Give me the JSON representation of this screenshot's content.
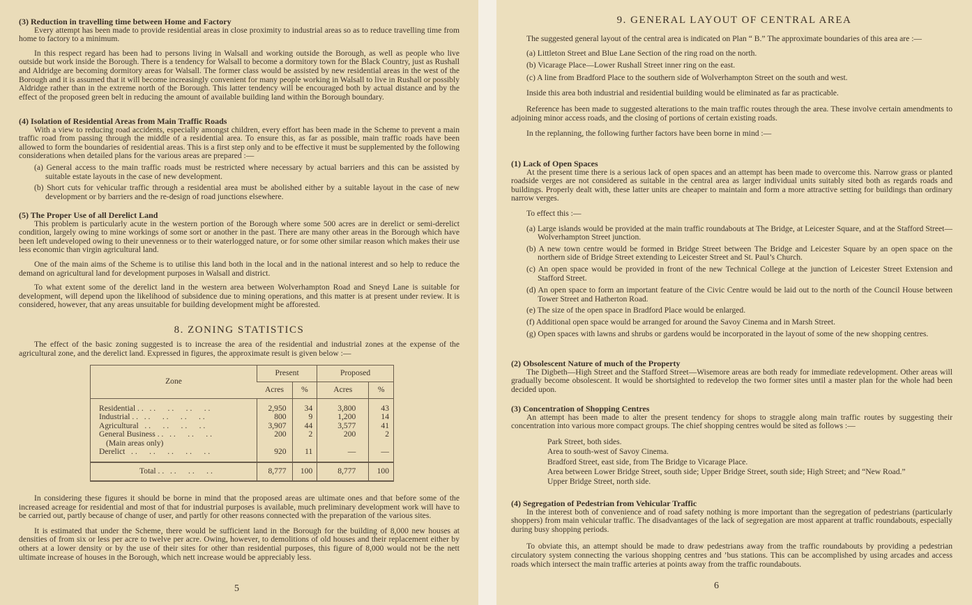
{
  "left_page": {
    "page_number": "5",
    "sec3": {
      "heading": "(3) Reduction in travelling time between Home and Factory",
      "paras": [
        "Every attempt has been made to provide residential areas in close proximity to industrial areas so as to reduce travelling time from home to factory to a minimum.",
        "In this respect regard has been had to persons living in Walsall and working outside the Borough, as well as people who live outside but work inside the Borough. There is a tendency for Walsall to become a dormitory town for the Black Country, just as Rushall and Aldridge are becoming dormitory areas for Walsall. The former class would be assisted by new residential areas in the west of the Borough and it is assumed that it will become increasingly convenient for many people working in Walsall to live in Rushall or possibly Aldridge rather than in the extreme north of the Borough. This latter tendency will be encouraged both by actual distance and by the effect of the proposed green belt in reducing the amount of available building land within the Borough boundary."
      ]
    },
    "sec4": {
      "heading": "(4) Isolation of Residential Areas from Main Traffic Roads",
      "para": "With a view to reducing road accidents, especially amongst children, every effort has been made in the Scheme to prevent a main traffic road from passing through the middle of a residential area. To ensure this, as far as possible, main traffic roads have been allowed to form the boundaries of residential areas. This is a first step only and to be effective it must be supplemented by the following considerations when detailed plans for the various areas are prepared :—",
      "items": [
        "(a) General access to the main traffic roads must be restricted where necessary by actual barriers and this can be assisted by suitable estate layouts in the case of new development.",
        "(b) Short cuts for vehicular traffic through a residential area must be abolished either by a suitable layout in the case of new development or by barriers and the re-design of road junctions elsewhere."
      ]
    },
    "sec5": {
      "heading": "(5) The Proper Use of all Derelict Land",
      "paras": [
        "This problem is particularly acute in the western portion of the Borough where some 500 acres are in derelict or semi-derelict condition, largely owing to mine workings of some sort or another in the past. There are many other areas in the Borough which have been left undeveloped owing to their unevenness or to their waterlogged nature, or for some other similar reason which makes their use less economic than virgin agricultural land.",
        "One of the main aims of the Scheme is to utilise this land both in the local and in the national interest and so help to reduce the demand on agricultural land for development purposes in Walsall and district.",
        "To what extent some of the derelict land in the western area between Wolverhampton Road and Sneyd Lane is suitable for development, will depend upon the likelihood of subsidence due to mining operations, and this matter is at present under review. It is considered, however, that any areas unsuitable for building development might be afforested."
      ]
    },
    "sec8": {
      "title": "8. ZONING STATISTICS",
      "intro": "The effect of the basic zoning suggested is to increase the area of the residential and industrial zones at the expense of the agricultural zone, and the derelict land. Expressed in figures, the approximate result is given below :—",
      "table": {
        "col_zone": "Zone",
        "col_present": "Present",
        "col_proposed": "Proposed",
        "col_acres": "Acres",
        "col_pct": "%",
        "rows": [
          {
            "zone": "Residential . .",
            "dots": ". .      . .      . .      . .",
            "present_acres": "2,950",
            "present_pct": "34",
            "proposed_acres": "3,800",
            "proposed_pct": "43"
          },
          {
            "zone": "Industrial . .",
            "dots": ". .      . .      . .      . .",
            "present_acres": "800",
            "present_pct": "9",
            "proposed_acres": "1,200",
            "proposed_pct": "14"
          },
          {
            "zone": "Agricultural",
            "dots": ". .      . .      . .      . .",
            "present_acres": "3,907",
            "present_pct": "44",
            "proposed_acres": "3,577",
            "proposed_pct": "41"
          },
          {
            "zone": "General Business . .",
            "dots": ". .      . .      . .",
            "present_acres": "200",
            "present_pct": "2",
            "proposed_acres": "200",
            "proposed_pct": "2"
          },
          {
            "zone": "(Main areas only)",
            "dots": "",
            "present_acres": "",
            "present_pct": "",
            "proposed_acres": "",
            "proposed_pct": ""
          },
          {
            "zone": "Derelict",
            "dots": ". .      . .      . .      . .      . .",
            "present_acres": "920",
            "present_pct": "11",
            "proposed_acres": "—",
            "proposed_pct": "—"
          }
        ],
        "total": {
          "label": "Total . .",
          "dots": ". .      . .      . .",
          "present_acres": "8,777",
          "present_pct": "100",
          "proposed_acres": "8,777",
          "proposed_pct": "100"
        }
      },
      "paras": [
        "In considering these figures it should be borne in mind that the proposed areas are ultimate ones and that before some of the increased acreage for residential and most of that for industrial purposes is available, much preliminary development work will have to be carried out, partly because of change of user, and partly for other reasons connected with the preparation of the various sites.",
        "It is estimated that under the Scheme, there would be sufficient land in the Borough for the building of 8,000 new houses at densities of from six or less per acre to twelve per acre. Owing, however, to demolitions of old houses and their replacement either by others at a lower density or by the use of their sites for other than residential purposes, this figure of 8,000 would not be the nett ultimate increase of houses in the Borough, which nett increase would be appreciably less."
      ]
    }
  },
  "right_page": {
    "page_number": "6",
    "title": "9. GENERAL LAYOUT OF CENTRAL AREA",
    "intro": "The suggested general layout of the central area is indicated on Plan “ B.”  The approximate boundaries of this area are :—",
    "boundaries": [
      "(a) Littleton Street and Blue Lane Section of the ring road on the north.",
      "(b) Vicarage Place—Lower Rushall Street inner ring on the east.",
      "(c) A line from Bradford Place to the southern side of Wolverhampton Street on the south and west."
    ],
    "paras": [
      "Inside this area both industrial and residential building would be eliminated as far as practicable.",
      "Reference has been made to suggested alterations to the main traffic routes through the area. These involve certain amendments to adjoining minor access roads, and the closing of portions of certain existing roads.",
      "In the replanning, the following further factors have been borne in mind :—"
    ],
    "sec1": {
      "heading": "(1) Lack of Open Spaces",
      "para": "At the present time there is a serious lack of open spaces and an attempt has been made to overcome this. Narrow grass or planted roadside verges are not considered as suitable in the central area as larger individual units suitably sited both as regards roads and buildings. Properly dealt with, these latter units are cheaper to maintain and form a more attractive setting for buildings than ordinary narrow verges.",
      "lead": "To effect this :—",
      "items": [
        "(a) Large islands would be provided at the main traffic roundabouts at The Bridge, at Leicester Square, and at the Stafford Street—Wolverhampton Street junction.",
        "(b) A new town centre would be formed in Bridge Street between The Bridge and Leicester Square by an open space on the northern side of Bridge Street extending to Leicester Street and St. Paul’s Church.",
        "(c) An open space would be provided in front of the new Technical College at the junction of Leicester Street Extension and Stafford Street.",
        "(d) An open space to form an important feature of the Civic Centre would be laid out to the north of the Council House between Tower Street and Hatherton Road.",
        "(e) The size of the open space in Bradford Place would be enlarged.",
        "(f) Additional open space would be arranged for around the Savoy Cinema and in Marsh Street.",
        "(g) Open spaces with lawns and shrubs or gardens would be incorporated in the layout of some of the new shopping centres."
      ]
    },
    "sec2": {
      "heading": "(2) Obsolescent Nature of much of the Property",
      "para": "The Digbeth—High Street and the Stafford Street—Wisemore areas are both ready for immediate redevelopment. Other areas will gradually become obsolescent. It would be shortsighted to redevelop the two former sites until a master plan for the whole had been decided upon."
    },
    "sec3": {
      "heading": "(3) Concentration of Shopping Centres",
      "para": "An attempt has been made to alter the present tendency for shops to straggle along main traffic routes by suggesting their concentration into various more compact groups. The chief shopping centres would be sited as follows :—",
      "sites": [
        "Park Street, both sides.",
        "Area to south-west of Savoy Cinema.",
        "Bradford Street, east side, from The Bridge to Vicarage Place.",
        "Area between Lower Bridge Street, south side; Upper Bridge Street, south side; High Street; and “New Road.”",
        "Upper Bridge Street, north side."
      ]
    },
    "sec4": {
      "heading": "(4) Segregation of Pedestrian from Vehicular Traffic",
      "paras": [
        "In the interest both of convenience and of road safety nothing is more important than the segregation of pedestrians (particularly shoppers) from main vehicular traffic. The disadvantages of the lack of segregation are most apparent at traffic roundabouts, especially during busy shopping periods.",
        "To obviate this, an attempt should be made to draw pedestrians away from the traffic roundabouts by providing a pedestrian circulatory system connecting the various shopping centres and ’bus stations. This can be accomplished by using arcades and access roads which intersect the main traffic arteries at points away from the traffic roundabouts."
      ]
    }
  }
}
